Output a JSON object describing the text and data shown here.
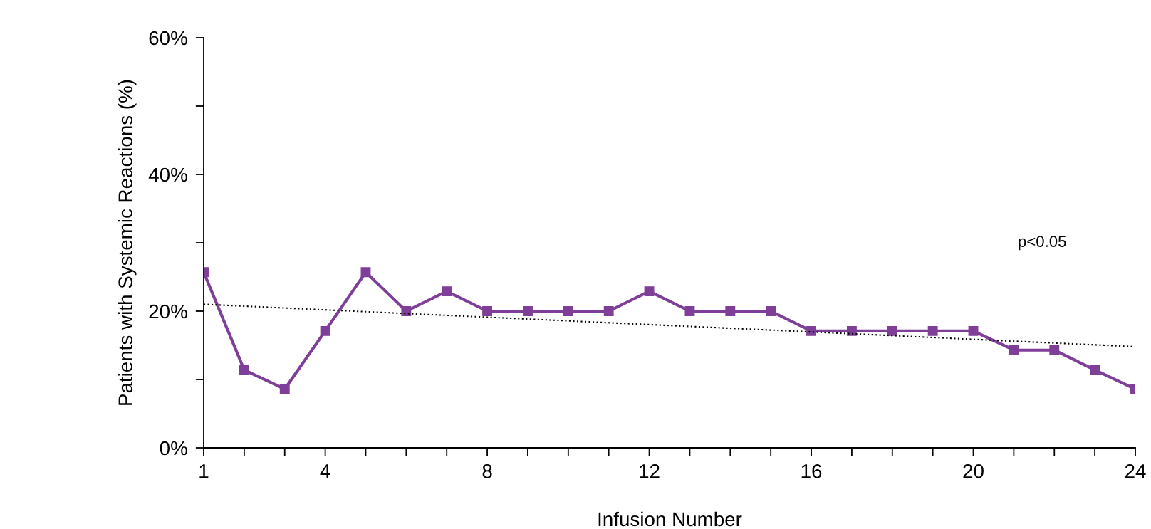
{
  "chart_data": {
    "type": "line",
    "xlabel": "Infusion Number",
    "ylabel": "Patients with Systemic Reactions (%)",
    "x": [
      1,
      2,
      3,
      4,
      5,
      6,
      7,
      8,
      9,
      10,
      11,
      12,
      13,
      14,
      15,
      16,
      17,
      18,
      19,
      20,
      21,
      22,
      23,
      24
    ],
    "series": [
      {
        "color": "#7f3f98",
        "marker": "square",
        "line_style": "solid",
        "values": [
          25.7,
          11.4,
          8.6,
          17.1,
          25.7,
          20,
          22.9,
          20,
          20,
          20,
          20,
          22.9,
          20,
          20,
          20,
          17.1,
          17.1,
          17.1,
          17.1,
          17.1,
          14.3,
          14.3,
          11.4,
          8.6
        ]
      },
      {
        "type": "line",
        "x": [
          1,
          24
        ],
        "values": [
          21,
          14.8
        ],
        "color": "#000000",
        "marker": "none",
        "line_style": "dotted"
      }
    ],
    "xlim": [
      1,
      24
    ],
    "xticks": [
      1,
      {
        "value": 2,
        "label": null
      },
      {
        "value": 3,
        "label": null
      },
      4,
      {
        "value": 5,
        "label": null
      },
      {
        "value": 6,
        "label": null
      },
      {
        "value": 7,
        "label": null
      },
      8,
      {
        "value": 9,
        "label": null
      },
      {
        "value": 10,
        "label": null
      },
      {
        "value": 11,
        "label": null
      },
      12,
      {
        "value": 13,
        "label": null
      },
      {
        "value": 14,
        "label": null
      },
      {
        "value": 15,
        "label": null
      },
      16,
      {
        "value": 17,
        "label": null
      },
      {
        "value": 18,
        "label": null
      },
      {
        "value": 19,
        "label": null
      },
      20,
      {
        "value": 21,
        "label": null
      },
      {
        "value": 22,
        "label": null
      },
      {
        "value": 23,
        "label": null
      },
      24
    ],
    "ylim": [
      0,
      60
    ],
    "yticks": [
      {
        "value": 0,
        "label": "0%"
      },
      {
        "value": 10,
        "label": null
      },
      {
        "value": 20,
        "label": "20%"
      },
      {
        "value": 30,
        "label": null
      },
      {
        "value": 40,
        "label": "40%"
      },
      {
        "value": 50,
        "label": null
      },
      {
        "value": 60,
        "label": "60%"
      }
    ],
    "annotations": [
      "p<0.05"
    ],
    "grid": false
  }
}
